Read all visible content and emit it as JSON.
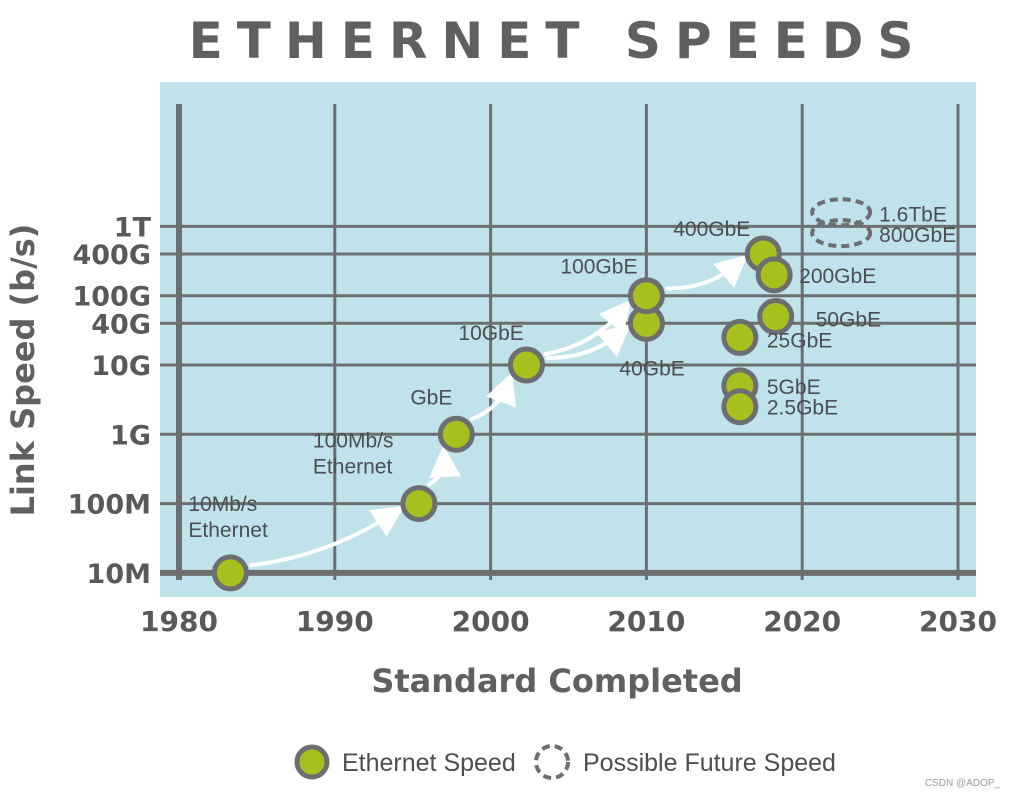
{
  "chart_data": {
    "type": "scatter",
    "title": "ETHERNET SPEEDS",
    "xlabel": "Standard Completed",
    "ylabel": "Link Speed (b/s)",
    "xlim": [
      1980,
      2030
    ],
    "x_ticks": [
      "1980",
      "1990",
      "2000",
      "2010",
      "2020",
      "2030"
    ],
    "y_scale": "log",
    "y_ticks": [
      "10M",
      "100M",
      "1G",
      "10G",
      "40G",
      "100G",
      "400G",
      "1T"
    ],
    "grid": true,
    "background_color": "#bfe2eb",
    "grid_color": "#6d6e70",
    "marker_color": "#a6c11d",
    "marker_outline": "#6d6e70",
    "arrow_color": "#ffffff",
    "series": [
      {
        "name": "Ethernet Speed",
        "points": [
          {
            "x": 1983.3,
            "y": "10M",
            "label": "10Mb/s Ethernet"
          },
          {
            "x": 1995.4,
            "y": "100M",
            "label": "100Mb/s Ethernet"
          },
          {
            "x": 1997.8,
            "y": "1G",
            "label": "GbE"
          },
          {
            "x": 2002.3,
            "y": "10G",
            "label": "10GbE"
          },
          {
            "x": 2010.0,
            "y": "40G",
            "label": "40GbE"
          },
          {
            "x": 2010.0,
            "y": "100G",
            "label": "100GbE"
          },
          {
            "x": 2017.5,
            "y": "400G",
            "label": "400GbE"
          },
          {
            "x": 2018.2,
            "y": "200G",
            "label": "200GbE"
          },
          {
            "x": 2018.3,
            "y": "50G",
            "label": "50GbE"
          },
          {
            "x": 2016.0,
            "y": "25G",
            "label": "25GbE"
          },
          {
            "x": 2016.0,
            "y": "5G",
            "label": "5GbE"
          },
          {
            "x": 2016.0,
            "y": "2.5G",
            "label": "2.5GbE"
          }
        ]
      },
      {
        "name": "Possible Future Speed",
        "points": [
          {
            "x": 2022.5,
            "y": "800G",
            "label": "800GbE"
          },
          {
            "x": 2022.5,
            "y": "1.6T",
            "label": "1.6TbE"
          }
        ]
      }
    ],
    "progression_arrows": [
      {
        "from": "10Mb/s Ethernet",
        "to": "100Mb/s Ethernet"
      },
      {
        "from": "100Mb/s Ethernet",
        "to": "GbE"
      },
      {
        "from": "GbE",
        "to": "10GbE"
      },
      {
        "from": "10GbE",
        "to": "100GbE"
      },
      {
        "from": "10GbE",
        "to": "40GbE"
      },
      {
        "from": "100GbE",
        "to": "400GbE"
      }
    ],
    "legend": {
      "placement": "bottom",
      "items": [
        {
          "label": "Ethernet Speed",
          "marker": "filled-circle"
        },
        {
          "label": "Possible Future Speed",
          "marker": "dashed-circle"
        }
      ]
    }
  },
  "watermark": "CSDN @ADOP_"
}
